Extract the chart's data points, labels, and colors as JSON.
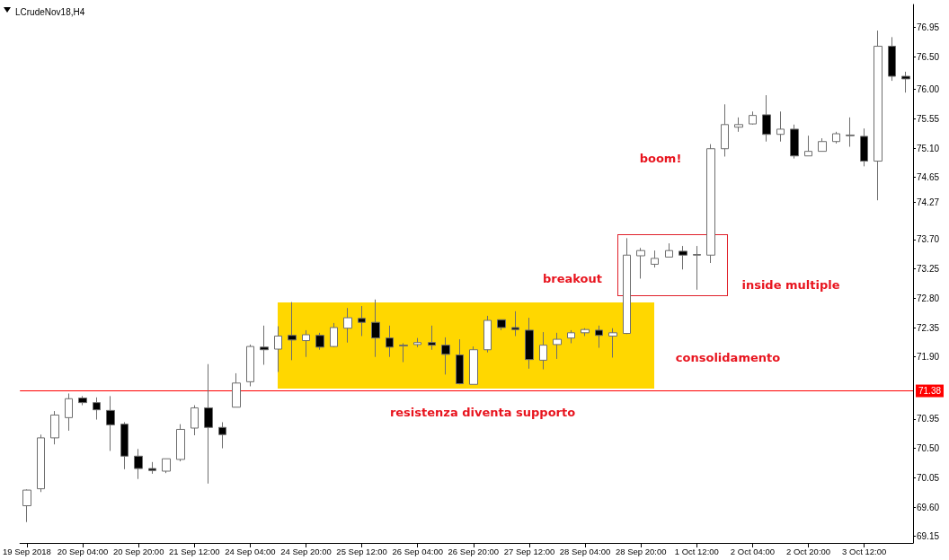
{
  "chart_data": {
    "type": "candlestick",
    "title": "LCrudeNov18,H4",
    "categories": [
      "19 Sep 2018",
      null,
      null,
      null,
      "20 Sep 04:00",
      null,
      null,
      null,
      "20 Sep 20:00",
      null,
      null,
      null,
      "21 Sep 12:00",
      null,
      null,
      null,
      "24 Sep 04:00",
      null,
      null,
      null,
      "24 Sep 20:00",
      null,
      null,
      null,
      "25 Sep 12:00",
      null,
      null,
      null,
      "26 Sep 04:00",
      null,
      null,
      null,
      "26 Sep 20:00",
      null,
      null,
      null,
      "27 Sep 12:00",
      null,
      null,
      null,
      "28 Sep 04:00",
      null,
      null,
      null,
      "28 Sep 20:00",
      null,
      null,
      null,
      "1 Oct 12:00",
      null,
      null,
      null,
      "2 Oct 04:00",
      null,
      null,
      null,
      "2 Oct 20:00",
      null,
      null,
      null,
      "3 Oct 12:00",
      null,
      null,
      null
    ],
    "ohlc": [
      [
        69.62,
        69.87,
        69.37,
        69.86
      ],
      [
        69.88,
        70.71,
        69.83,
        70.66
      ],
      [
        70.66,
        71.07,
        70.56,
        71.01
      ],
      [
        70.97,
        71.34,
        70.77,
        71.26
      ],
      [
        71.27,
        71.3,
        71.16,
        71.2
      ],
      [
        71.2,
        71.28,
        70.94,
        71.09
      ],
      [
        71.08,
        71.3,
        70.46,
        70.86
      ],
      [
        70.87,
        70.9,
        70.18,
        70.38
      ],
      [
        70.38,
        70.49,
        70.03,
        70.19
      ],
      [
        70.19,
        70.29,
        70.11,
        70.16
      ],
      [
        70.15,
        70.34,
        70.12,
        70.34
      ],
      [
        70.33,
        70.87,
        70.3,
        70.79
      ],
      [
        70.81,
        71.16,
        70.7,
        71.12
      ],
      [
        71.12,
        71.79,
        69.96,
        70.82
      ],
      [
        70.82,
        70.9,
        70.5,
        70.71
      ],
      [
        71.13,
        71.65,
        71.13,
        71.5
      ],
      [
        71.52,
        72.09,
        71.45,
        72.06
      ],
      [
        72.05,
        72.38,
        71.78,
        72.01
      ],
      [
        72.02,
        72.37,
        71.67,
        72.22
      ],
      [
        72.23,
        72.74,
        71.85,
        72.16
      ],
      [
        72.15,
        72.31,
        71.9,
        72.24
      ],
      [
        72.23,
        72.27,
        72.01,
        72.05
      ],
      [
        72.06,
        72.42,
        72.05,
        72.35
      ],
      [
        72.34,
        72.65,
        72.12,
        72.5
      ],
      [
        72.49,
        72.68,
        72.22,
        72.43
      ],
      [
        72.43,
        72.78,
        71.9,
        72.19
      ],
      [
        72.19,
        72.38,
        71.9,
        72.05
      ],
      [
        72.08,
        72.11,
        71.82,
        72.07
      ],
      [
        72.09,
        72.19,
        72.05,
        72.12
      ],
      [
        72.12,
        72.38,
        72.01,
        72.08
      ],
      [
        72.08,
        72.2,
        71.63,
        71.94
      ],
      [
        71.93,
        72.17,
        71.48,
        71.49
      ],
      [
        71.48,
        72.06,
        71.48,
        72.01
      ],
      [
        72.01,
        72.53,
        71.97,
        72.46
      ],
      [
        72.47,
        72.47,
        72.31,
        72.35
      ],
      [
        72.35,
        72.6,
        72.22,
        72.32
      ],
      [
        72.31,
        72.5,
        71.72,
        71.86
      ],
      [
        71.85,
        72.28,
        71.71,
        72.08
      ],
      [
        72.09,
        72.27,
        71.87,
        72.17
      ],
      [
        72.19,
        72.31,
        72.11,
        72.27
      ],
      [
        72.27,
        72.34,
        72.22,
        72.32
      ],
      [
        72.31,
        72.38,
        72.04,
        72.23
      ],
      [
        72.22,
        72.34,
        71.89,
        72.27
      ],
      [
        72.26,
        73.72,
        72.25,
        73.46
      ],
      [
        73.45,
        73.57,
        73.1,
        73.53
      ],
      [
        73.32,
        73.53,
        73.27,
        73.41
      ],
      [
        73.43,
        73.64,
        73.43,
        73.53
      ],
      [
        73.52,
        73.6,
        73.24,
        73.46
      ],
      [
        73.47,
        73.6,
        72.93,
        73.46
      ],
      [
        73.46,
        75.16,
        73.34,
        75.09
      ],
      [
        75.09,
        75.77,
        74.97,
        75.46
      ],
      [
        75.42,
        75.57,
        75.35,
        75.46
      ],
      [
        75.47,
        75.66,
        75.46,
        75.6
      ],
      [
        75.61,
        75.91,
        75.2,
        75.31
      ],
      [
        75.31,
        75.66,
        75.2,
        75.39
      ],
      [
        75.39,
        75.46,
        74.94,
        74.98
      ],
      [
        74.98,
        75.29,
        74.98,
        75.05
      ],
      [
        75.05,
        75.25,
        75.05,
        75.2
      ],
      [
        75.2,
        75.35,
        75.17,
        75.32
      ],
      [
        75.3,
        75.57,
        75.12,
        75.29
      ],
      [
        75.28,
        75.4,
        74.82,
        74.9
      ],
      [
        74.9,
        76.9,
        74.3,
        76.66
      ],
      [
        76.66,
        76.8,
        76.13,
        76.2
      ],
      [
        76.2,
        76.27,
        75.95,
        76.16
      ]
    ],
    "ylim": [
      69.05,
      77.3
    ],
    "yticks": [
      69.15,
      {
        "value": 69.6,
        "label": "69.60"
      },
      70.05,
      {
        "value": 70.5,
        "label": "70.50"
      },
      70.95,
      {
        "value": 71.9,
        "label": "71.90"
      },
      72.35,
      {
        "value": 72.8,
        "label": "72.80"
      },
      73.25,
      {
        "value": 73.7,
        "label": "73.70"
      },
      74.27,
      74.65,
      {
        "value": 75.1,
        "label": "75.10"
      },
      75.55,
      {
        "value": 76.0,
        "label": "76.00"
      },
      {
        "value": 76.5,
        "label": "76.50"
      },
      76.95
    ],
    "ref_lines": [
      {
        "axis": "y",
        "value": 71.38,
        "label": "71.38",
        "color": "#ff0000"
      }
    ],
    "annotations": [
      "boom!",
      "breakout",
      "inside multiple",
      "consolidamento",
      "resistenza diventa supporto"
    ],
    "grid": false
  }
}
